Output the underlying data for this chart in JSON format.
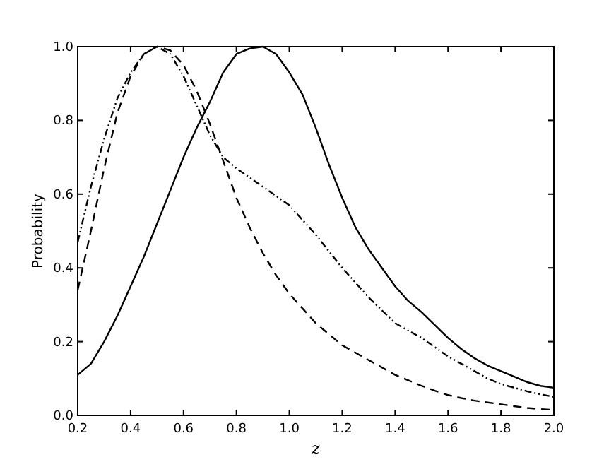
{
  "chart_data": {
    "type": "line",
    "xlabel": "z",
    "ylabel": "Probability",
    "xlim": [
      0.2,
      2.0
    ],
    "ylim": [
      0,
      1
    ],
    "xticks": [
      0.2,
      0.4,
      0.6,
      0.8,
      {
        "value": 1,
        "label": "1.0"
      },
      1.2,
      1.4,
      1.6,
      1.8,
      {
        "value": 2,
        "label": "2.0"
      }
    ],
    "yticks": [
      {
        "value": 0,
        "label": "0.0"
      },
      0.2,
      0.4,
      0.6,
      0.8,
      {
        "value": 1,
        "label": "1.0"
      }
    ],
    "grid": false,
    "marker": "none",
    "x": [
      0.2,
      0.25,
      0.3,
      0.35,
      0.4,
      0.45,
      0.5,
      0.55,
      0.6,
      0.65,
      0.7,
      0.75,
      0.8,
      0.85,
      0.9,
      0.95,
      1.0,
      1.05,
      1.1,
      1.15,
      1.2,
      1.25,
      1.3,
      1.35,
      1.4,
      1.45,
      1.5,
      1.55,
      1.6,
      1.65,
      1.7,
      1.75,
      1.8,
      1.85,
      1.9,
      1.95,
      2.0
    ],
    "series": [
      {
        "color": "#000000",
        "line_style": "solid",
        "values": [
          0.11,
          0.14,
          0.2,
          0.27,
          0.35,
          0.43,
          0.52,
          0.61,
          0.7,
          0.78,
          0.85,
          0.93,
          0.98,
          0.995,
          1.0,
          0.98,
          0.93,
          0.87,
          0.78,
          0.68,
          0.59,
          0.51,
          0.45,
          0.4,
          0.35,
          0.31,
          0.28,
          0.245,
          0.21,
          0.18,
          0.155,
          0.135,
          0.12,
          0.105,
          0.09,
          0.08,
          0.075
        ]
      },
      {
        "color": "#000000",
        "line_style": "dashed",
        "values": [
          0.34,
          0.5,
          0.67,
          0.82,
          0.92,
          0.98,
          1.0,
          0.99,
          0.95,
          0.88,
          0.79,
          0.69,
          0.59,
          0.51,
          0.44,
          0.38,
          0.33,
          0.29,
          0.25,
          0.22,
          0.19,
          0.17,
          0.15,
          0.13,
          0.11,
          0.095,
          0.08,
          0.067,
          0.055,
          0.047,
          0.04,
          0.035,
          0.03,
          0.025,
          0.02,
          0.017,
          0.015
        ]
      },
      {
        "color": "#000000",
        "line_style": "dotted",
        "values": [
          0.47,
          0.62,
          0.75,
          0.86,
          0.93,
          0.98,
          1.0,
          0.98,
          0.92,
          0.84,
          0.76,
          0.7,
          0.67,
          0.645,
          0.62,
          0.595,
          0.57,
          0.53,
          0.49,
          0.445,
          0.4,
          0.36,
          0.32,
          0.285,
          0.25,
          0.23,
          0.21,
          0.185,
          0.16,
          0.14,
          0.12,
          0.1,
          0.085,
          0.075,
          0.065,
          0.057,
          0.05
        ]
      }
    ]
  }
}
